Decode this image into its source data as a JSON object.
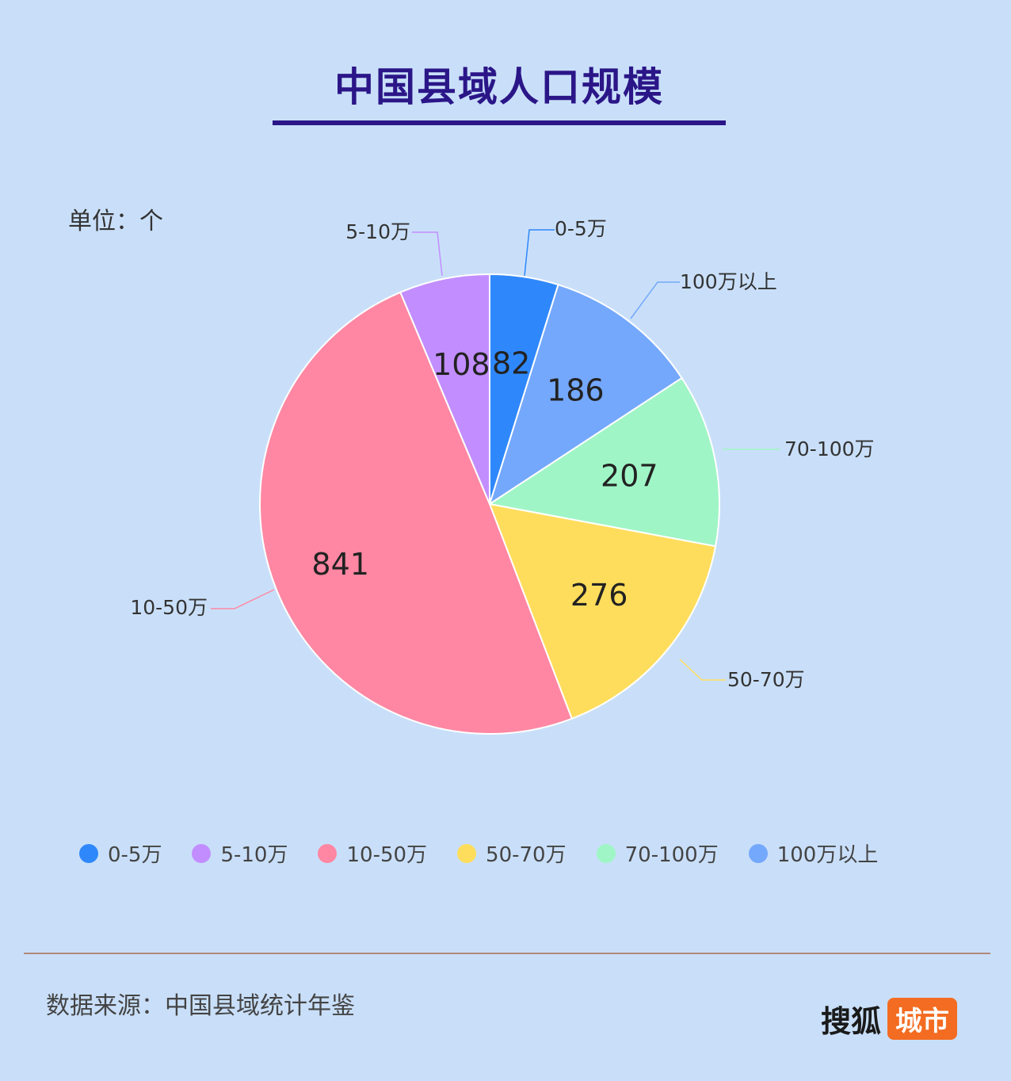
{
  "title": "中国县域人口规模",
  "unit_label": "单位：个",
  "source": "数据来源：中国县域统计年鉴",
  "logo": {
    "main": "搜狐",
    "badge": "城市"
  },
  "chart_data": {
    "type": "pie",
    "categories": [
      "0-5万",
      "100万以上",
      "70-100万",
      "50-70万",
      "10-50万",
      "5-10万"
    ],
    "values": [
      82,
      186,
      207,
      276,
      841,
      108
    ],
    "colors": [
      "#2f88fb",
      "#74a8fc",
      "#9ff5c6",
      "#ffdd5c",
      "#ff87a3",
      "#c28eff"
    ],
    "legend": {
      "placement": "bottom",
      "order": [
        "0-5万",
        "5-10万",
        "10-50万",
        "50-70万",
        "70-100万",
        "100万以上"
      ]
    }
  }
}
